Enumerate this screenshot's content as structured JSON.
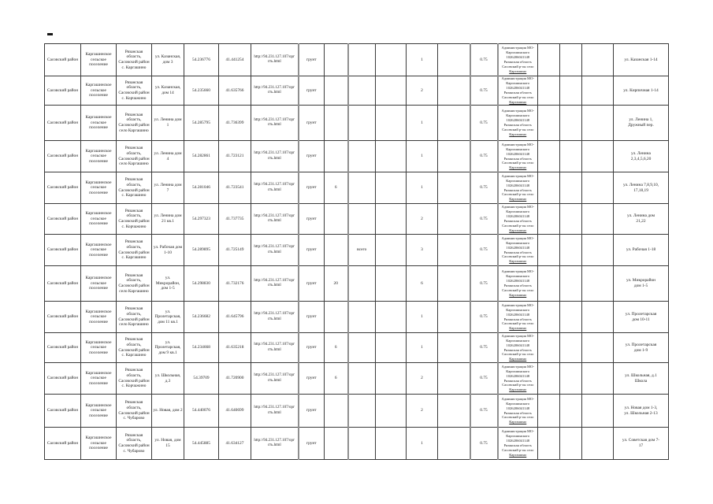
{
  "page": {
    "background": "#ffffff",
    "border_color": "#2a2a2a",
    "text_color": "#222222"
  },
  "table": {
    "shared": {
      "district": "Сасовский район",
      "settlement": "Каргашинское сельское поселение",
      "region": "Рязанская область,\nСасовский район",
      "url": "http://94.231.127.107/орг\nсть.html",
      "surface": "грунт",
      "tariff": "0.75",
      "operator_main": "Администрация МО-\nКаргашинского\n1026206041148\nРязанская область\nСасовский р-он село",
      "operator_link": "Каргашино"
    },
    "rows": [
      {
        "h": 41,
        "village": "с. Каргашино",
        "street": "ул. Казанская,\nдом 3",
        "lat": "54.236776",
        "lon": "41.441254",
        "c9": "",
        "c10": "",
        "c12": "1",
        "served": "ул. Казанская 1-14"
      },
      {
        "h": 37,
        "village": "с. Корчажино",
        "street": "ул. Казанская,\nдом 14",
        "lat": "54.235660",
        "lon": "41.635766",
        "c9": "",
        "c10": "",
        "c12": "2",
        "served": "ул. Кирпичная 1-14"
      },
      {
        "h": 45,
        "village": "село Каргашино",
        "street": "ул. Ленина дом\n1",
        "lat": "54.285795",
        "lon": "41.736399",
        "c9": "",
        "c10": "",
        "c12": "1",
        "served": "ул. Ленина 1,\nДружный пер."
      },
      {
        "h": 40,
        "village": "село Каргашино",
        "street": "ул. Ленина дом\n4",
        "lat": "54.282861",
        "lon": "41.723121",
        "c9": "",
        "c10": "",
        "c12": "1",
        "served": "ул. Ленина\n2,3,4,5,6,20"
      },
      {
        "h": 40,
        "village": "с. Каргашино",
        "street": "ул. Ленина дом 7",
        "lat": "54.281046",
        "lon": "41.723541",
        "c9": "6",
        "c10": "",
        "c12": "1",
        "served": "ул. Ленина 7,8,9,10,\n17,18,19"
      },
      {
        "h": 39,
        "village": "с. Корчажино",
        "street": "ул. Ленина дом\n21 кв.1",
        "lat": "54.297323",
        "lon": "41.737735",
        "c9": "",
        "c10": "",
        "c12": "2",
        "served": "ул. Ленина дом\n21,22"
      },
      {
        "h": 40,
        "village": "с. Каргашино",
        "street": "ул. Рабочая дом\n1-10",
        "lat": "54.289895",
        "lon": "41.725149",
        "c9": "",
        "c10": "всего",
        "c12": "3",
        "served": "ул. Рабочая 1-18"
      },
      {
        "h": 45,
        "village": "село Каргашино",
        "street": "ул. Микрорайон,\nдом 1-5",
        "lat": "54.298830",
        "lon": "41.732176",
        "c9": "20",
        "c10": "",
        "c12": "6",
        "served": "ул. Микрорайон\nдом 1-5"
      },
      {
        "h": 40,
        "village": "село Каргашино",
        "street": "ул.\nПролетарская,\nдом 11 кв.1",
        "lat": "54.236682",
        "lon": "41.645796",
        "c9": "",
        "c10": "",
        "c12": "1",
        "served": "ул. Пролетарская\nдом 10-11"
      },
      {
        "h": 38,
        "village": "с. Каргашино",
        "street": "ул.\nПролетарская,\nдом 9 кв.1",
        "lat": "54.234668",
        "lon": "41.635218",
        "c9": "6",
        "c10": "",
        "c12": "1",
        "served": "ул. Пролетарская\nдом 1-9"
      },
      {
        "h": 40,
        "village": "с. Корчажино",
        "street": "ул. Школьная,\nд.3",
        "lat": "54.39709",
        "lon": "41.720900",
        "c9": "6",
        "c10": "",
        "c12": "2",
        "served": "ул. Школьная, д.1\nШкола"
      },
      {
        "h": 42,
        "village": "с. Чубарово",
        "street": "ул. Новая, дом 2",
        "lat": "54.440076",
        "lon": "41.640699",
        "c9": "",
        "c10": "",
        "c12": "2",
        "served": "ул. Новая дом 1-3,\nул. Школьная 2-13"
      },
      {
        "h": 41,
        "village": "с. Чубарово",
        "street": "ул. Новая, дом 15",
        "lat": "54.445885",
        "lon": "41.634127",
        "c9": "",
        "c10": "",
        "c12": "1",
        "served": "ул. Советская дом 7-\n17"
      }
    ]
  }
}
